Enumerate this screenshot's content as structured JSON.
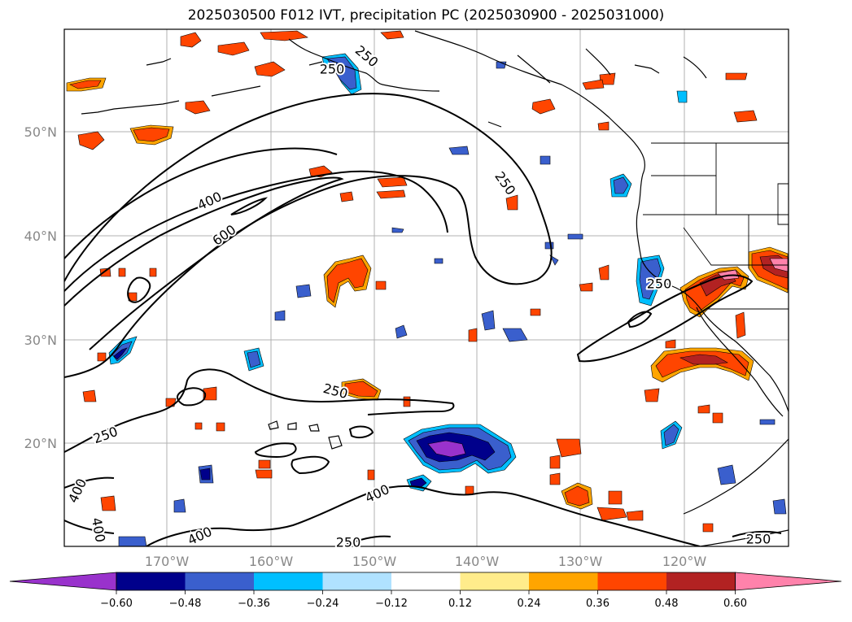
{
  "title": "2025030500 F012 IVT, precipitation PC (2025030900 - 2025031000)",
  "lat_labels": [
    "50°N",
    "40°N",
    "30°N",
    "20°N"
  ],
  "lon_labels": [
    "170°W",
    "160°W",
    "150°W",
    "140°W",
    "130°W",
    "120°W"
  ],
  "contour_labels": [
    "250",
    "250",
    "400",
    "600",
    "250",
    "250",
    "250",
    "250",
    "400",
    "400",
    "400",
    "400",
    "250",
    "250"
  ],
  "colorbar": {
    "ticks": [
      "−0.60",
      "−0.48",
      "−0.36",
      "−0.24",
      "−0.12",
      "0.12",
      "0.24",
      "0.36",
      "0.48",
      "0.60"
    ],
    "colors": [
      "#9932cc",
      "#00008b",
      "#3a5fcd",
      "#00bfff",
      "#b0e2ff",
      "#ffffff",
      "#ffec8b",
      "#ffa500",
      "#ff4500",
      "#b22222",
      "#ff82ab"
    ]
  },
  "colors": {
    "neg_strong": "#9932cc",
    "neg_dark": "#00008b",
    "neg_mid": "#3a5fcd",
    "neg_light": "#00bfff",
    "neg_pale": "#b0e2ff",
    "pos_pale": "#ffec8b",
    "pos_light": "#ffa500",
    "pos_mid": "#ff4500",
    "pos_dark": "#b22222",
    "pos_strong": "#ff82ab"
  }
}
